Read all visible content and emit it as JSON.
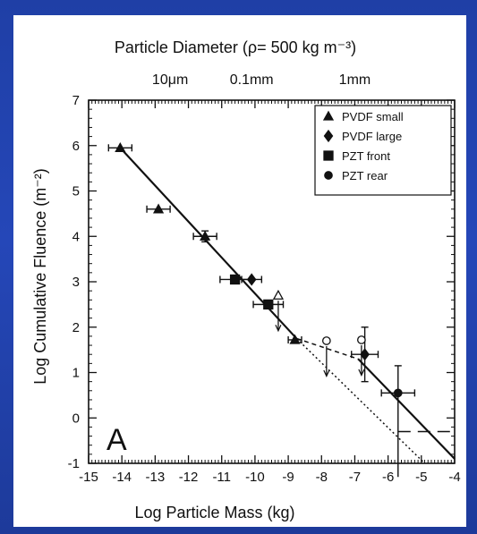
{
  "chart_data": {
    "type": "scatter",
    "title": "Particle Diameter (ρ= 500 kg m⁻³)",
    "top_axis_labels": [
      "10μm",
      "0.1mm",
      "1mm"
    ],
    "xlabel": "Log Particle Mass (kg)",
    "ylabel": "Log Cumulative Fluence (m⁻²)",
    "panel_label": "A",
    "xlim": [
      -15,
      -4
    ],
    "ylim": [
      -1,
      7
    ],
    "xticks": [
      -15,
      -14,
      -13,
      -12,
      -11,
      -10,
      -9,
      -8,
      -7,
      -6,
      -5,
      -4
    ],
    "yticks": [
      -1,
      0,
      1,
      2,
      3,
      4,
      5,
      6,
      7
    ],
    "legend_position": "top-right",
    "legend": [
      {
        "label": "PVDF small",
        "marker": "triangle"
      },
      {
        "label": "PVDF large",
        "marker": "diamond"
      },
      {
        "label": "PZT front",
        "marker": "square"
      },
      {
        "label": "PZT rear",
        "marker": "circle"
      }
    ],
    "series": [
      {
        "name": "PVDF small",
        "marker": "triangle",
        "points": [
          {
            "x": -14.05,
            "y": 5.95,
            "xerr": 0.35
          },
          {
            "x": -12.9,
            "y": 4.6,
            "xerr": 0.35
          },
          {
            "x": -11.5,
            "y": 4.0,
            "xerr": 0.35,
            "yerr": 0.12
          },
          {
            "x": -9.3,
            "y": 2.7,
            "xerr": 0.0,
            "open": true
          },
          {
            "x": -8.8,
            "y": 1.72,
            "xerr": 0.2
          }
        ]
      },
      {
        "name": "PVDF large",
        "marker": "diamond",
        "points": [
          {
            "x": -10.1,
            "y": 3.05,
            "xerr": 0.3
          },
          {
            "x": -6.7,
            "y": 1.4,
            "xerr": 0.4,
            "yerr": 0.6
          }
        ]
      },
      {
        "name": "PZT front",
        "marker": "square",
        "points": [
          {
            "x": -10.6,
            "y": 3.05,
            "xerr": 0.45
          },
          {
            "x": -9.6,
            "y": 2.5,
            "xerr": 0.45
          }
        ]
      },
      {
        "name": "PZT rear",
        "marker": "circle",
        "points": [
          {
            "x": -7.85,
            "y": 1.7,
            "xerr": 0.0,
            "open": true
          },
          {
            "x": -6.8,
            "y": 1.72,
            "xerr": 0.0,
            "open": true
          },
          {
            "x": -5.7,
            "y": 0.55,
            "xerr": 0.5,
            "yerr_up": 0.6,
            "yerr_down": 1.85
          }
        ]
      }
    ],
    "fit_lines": [
      {
        "style": "solid",
        "points": [
          [
            -14.05,
            5.95
          ],
          [
            -8.75,
            1.75
          ]
        ]
      },
      {
        "style": "dotted",
        "points": [
          [
            -8.75,
            1.75
          ],
          [
            -4.9,
            -1.0
          ]
        ]
      },
      {
        "style": "dashed",
        "points": [
          [
            -8.75,
            1.75
          ],
          [
            -6.9,
            1.3
          ]
        ]
      },
      {
        "style": "solid",
        "points": [
          [
            -6.9,
            1.3
          ],
          [
            -4.0,
            -0.9
          ]
        ]
      },
      {
        "style": "long-dash",
        "points": [
          [
            -5.7,
            -0.3
          ],
          [
            -4.0,
            -0.3
          ]
        ]
      }
    ]
  }
}
